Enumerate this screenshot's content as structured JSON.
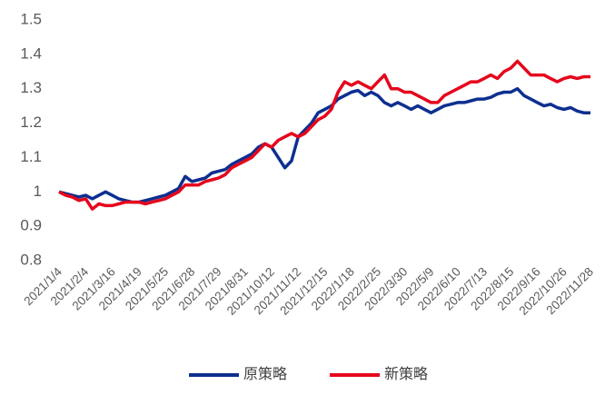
{
  "chart_data": {
    "type": "line",
    "categories": [
      "2021/1/4",
      null,
      null,
      null,
      "2021/2/4",
      null,
      null,
      null,
      "2021/3/16",
      null,
      null,
      null,
      "2021/4/19",
      null,
      null,
      null,
      "2021/5/25",
      null,
      null,
      null,
      "2021/6/28",
      null,
      null,
      null,
      "2021/7/29",
      null,
      null,
      null,
      "2021/8/31",
      null,
      null,
      null,
      "2021/10/12",
      null,
      null,
      null,
      "2021/11/12",
      null,
      null,
      null,
      "2021/12/15",
      null,
      null,
      null,
      "2022/1/18",
      null,
      null,
      null,
      "2022/2/25",
      null,
      null,
      null,
      "2022/3/30",
      null,
      null,
      null,
      "2022/5/9",
      null,
      null,
      null,
      "2022/6/10",
      null,
      null,
      null,
      "2022/7/13",
      null,
      null,
      null,
      "2022/8/15",
      null,
      null,
      null,
      "2022/9/16",
      null,
      null,
      null,
      "2022/10/26",
      null,
      null,
      null,
      "2022/11/28"
    ],
    "series": [
      {
        "name": "原策略",
        "color": "#0d2f8f",
        "values": [
          1.0,
          0.995,
          0.99,
          0.985,
          0.99,
          0.98,
          0.99,
          1.0,
          0.99,
          0.98,
          0.975,
          0.97,
          0.97,
          0.975,
          0.98,
          0.985,
          0.99,
          1.0,
          1.01,
          1.045,
          1.03,
          1.035,
          1.04,
          1.055,
          1.06,
          1.065,
          1.08,
          1.09,
          1.1,
          1.11,
          1.13,
          1.14,
          1.13,
          1.1,
          1.07,
          1.09,
          1.16,
          1.18,
          1.2,
          1.23,
          1.24,
          1.25,
          1.27,
          1.28,
          1.29,
          1.295,
          1.28,
          1.29,
          1.28,
          1.26,
          1.25,
          1.26,
          1.25,
          1.24,
          1.25,
          1.24,
          1.23,
          1.24,
          1.25,
          1.255,
          1.26,
          1.26,
          1.265,
          1.27,
          1.27,
          1.275,
          1.285,
          1.29,
          1.29,
          1.3,
          1.28,
          1.27,
          1.26,
          1.25,
          1.255,
          1.245,
          1.24,
          1.245,
          1.235,
          1.23,
          1.23
        ]
      },
      {
        "name": "新策略",
        "color": "#e5071c",
        "values": [
          1.0,
          0.99,
          0.985,
          0.975,
          0.98,
          0.95,
          0.965,
          0.96,
          0.96,
          0.965,
          0.97,
          0.97,
          0.97,
          0.965,
          0.97,
          0.975,
          0.98,
          0.99,
          1.0,
          1.02,
          1.02,
          1.02,
          1.03,
          1.035,
          1.04,
          1.05,
          1.07,
          1.08,
          1.09,
          1.1,
          1.12,
          1.14,
          1.13,
          1.15,
          1.16,
          1.17,
          1.16,
          1.17,
          1.19,
          1.21,
          1.22,
          1.24,
          1.29,
          1.32,
          1.31,
          1.32,
          1.31,
          1.3,
          1.32,
          1.34,
          1.3,
          1.3,
          1.29,
          1.29,
          1.28,
          1.27,
          1.26,
          1.26,
          1.28,
          1.29,
          1.3,
          1.31,
          1.32,
          1.32,
          1.33,
          1.34,
          1.33,
          1.35,
          1.36,
          1.38,
          1.36,
          1.34,
          1.34,
          1.34,
          1.33,
          1.32,
          1.33,
          1.335,
          1.33,
          1.335,
          1.335
        ]
      }
    ],
    "ylim": [
      0.8,
      1.5
    ],
    "yticks": [
      0.8,
      0.9,
      1,
      1.1,
      1.2,
      1.3,
      1.4,
      1.5
    ],
    "grid": false,
    "legend": "bottom"
  }
}
